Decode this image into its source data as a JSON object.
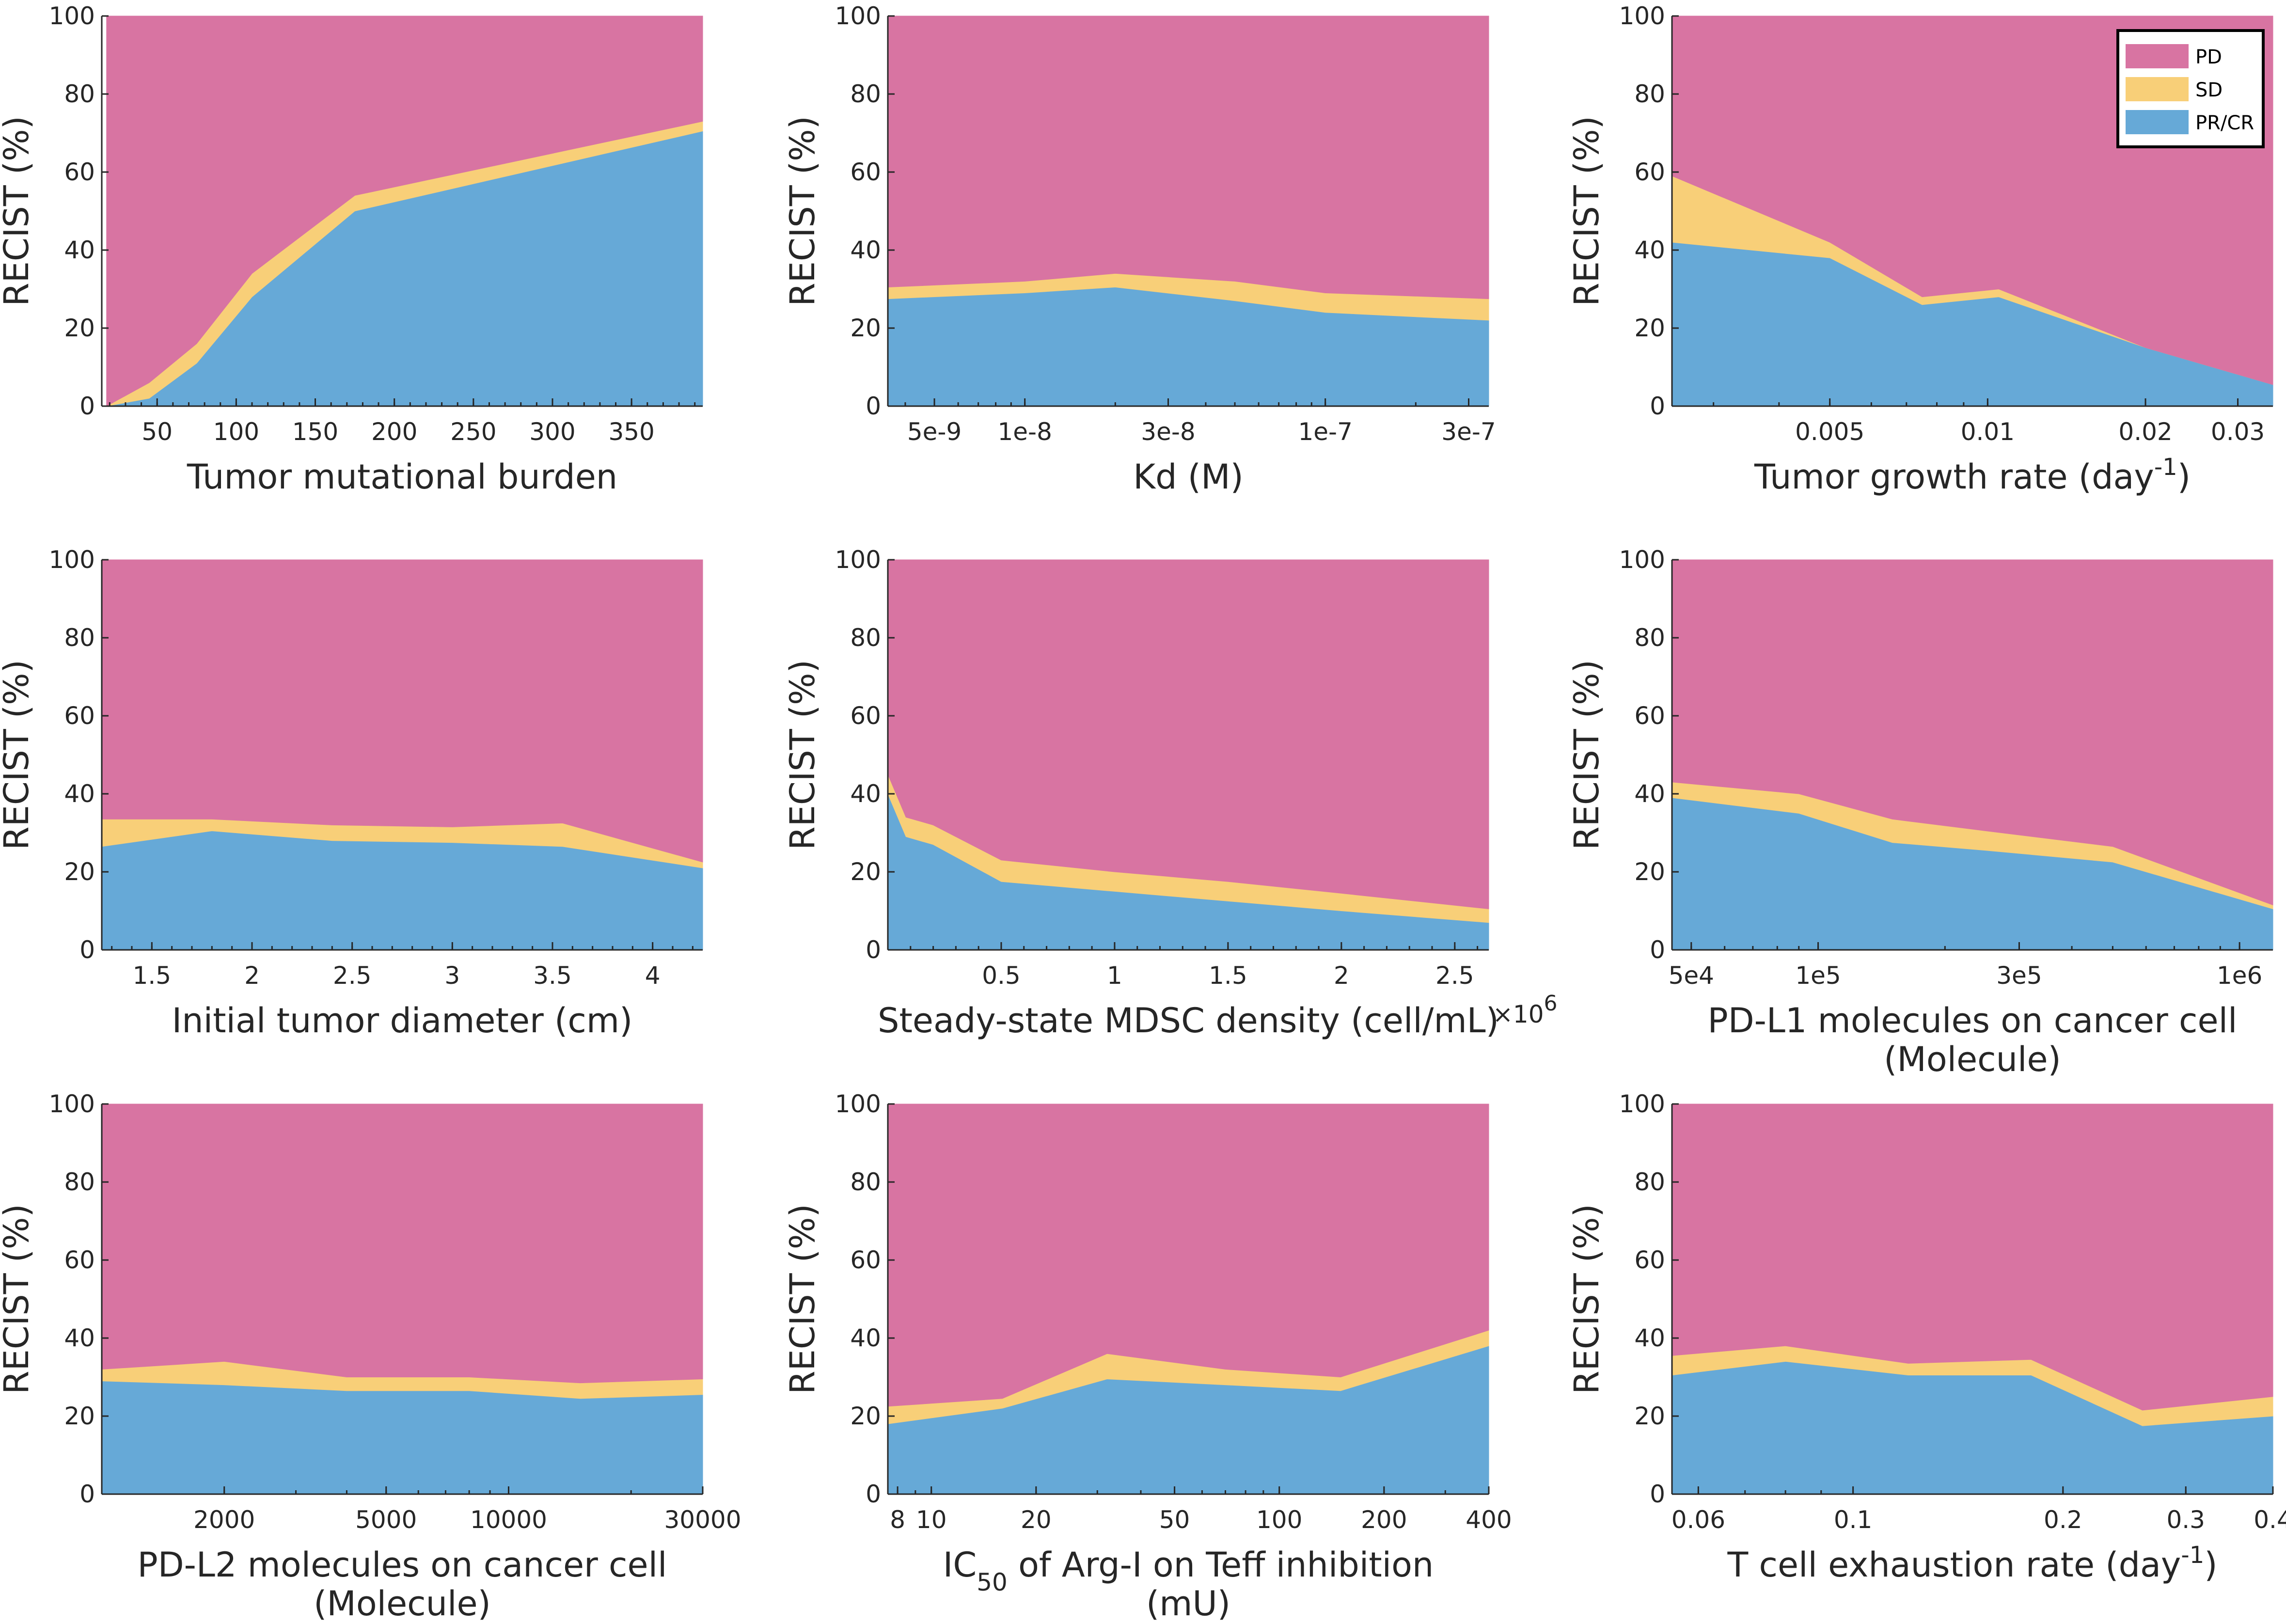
{
  "colors": {
    "PD": "#d874a2",
    "SD": "#f8cf78",
    "PRCR": "#66a9d7",
    "axis": "#262626"
  },
  "legend": {
    "panel": 2,
    "position": "top-right",
    "items": [
      {
        "key": "PD",
        "label": "PD"
      },
      {
        "key": "SD",
        "label": "SD"
      },
      {
        "key": "PRCR",
        "label": "PR/CR"
      }
    ]
  },
  "chart_data": [
    {
      "type": "area",
      "stacked": true,
      "xscale": "linear",
      "xlim": [
        15,
        395
      ],
      "ylim": [
        0,
        100
      ],
      "ylabel": "RECIST (%)",
      "xlabel": "Tumor mutational burden",
      "x": [
        18,
        45,
        75,
        110,
        175,
        395
      ],
      "series": [
        {
          "name": "PR/CR",
          "values": [
            0,
            2,
            11,
            28,
            50,
            70.5
          ]
        },
        {
          "name": "SD",
          "values": [
            0,
            4,
            5,
            6,
            4,
            2.5
          ]
        },
        {
          "name": "PD",
          "values": [
            100,
            94,
            84,
            66,
            46,
            27
          ]
        }
      ],
      "xticks": [
        50,
        100,
        150,
        200,
        250,
        300,
        350
      ],
      "xtick_labels": [
        "50",
        "100",
        "150",
        "200",
        "250",
        "300",
        "350"
      ],
      "yticks": [
        0,
        20,
        40,
        60,
        80,
        100
      ],
      "ytick_labels": [
        "0",
        "20",
        "40",
        "60",
        "80",
        "100"
      ]
    },
    {
      "type": "area",
      "stacked": true,
      "xscale": "log",
      "xlim": [
        3.5e-09,
        3.5e-07
      ],
      "ylim": [
        0,
        100
      ],
      "ylabel": "RECIST (%)",
      "xlabel": "Kd (M)",
      "x": [
        3.5e-09,
        1e-08,
        2e-08,
        5e-08,
        1e-07,
        3.5e-07
      ],
      "series": [
        {
          "name": "PR/CR",
          "values": [
            27.5,
            29,
            30.5,
            27,
            24,
            22
          ]
        },
        {
          "name": "SD",
          "values": [
            3,
            3,
            3.5,
            5,
            5,
            5.5
          ]
        },
        {
          "name": "PD",
          "values": [
            69.5,
            68,
            66,
            68,
            71,
            72.5
          ]
        }
      ],
      "xticks": [
        5e-09,
        1e-08,
        3e-08,
        1e-07,
        3e-07
      ],
      "xtick_labels": [
        "5e-9",
        "1e-8",
        "3e-8",
        "1e-7",
        "3e-7"
      ],
      "yticks": [
        0,
        20,
        40,
        60,
        80,
        100
      ],
      "ytick_labels": [
        "0",
        "20",
        "40",
        "60",
        "80",
        "100"
      ]
    },
    {
      "type": "area",
      "stacked": true,
      "xscale": "log",
      "xlim": [
        0.0025,
        0.035
      ],
      "ylim": [
        0,
        100
      ],
      "ylabel": "RECIST (%)",
      "xlabel": "Tumor growth rate (day",
      "xlabel_sup": "-1",
      "xlabel_suffix": ")",
      "x": [
        0.0025,
        0.005,
        0.0075,
        0.0105,
        0.02,
        0.035
      ],
      "series": [
        {
          "name": "PR/CR",
          "values": [
            42,
            38,
            26,
            28,
            15,
            5.5
          ]
        },
        {
          "name": "SD",
          "values": [
            17,
            4,
            2,
            2,
            0,
            0
          ]
        },
        {
          "name": "PD",
          "values": [
            41,
            58,
            72,
            70,
            85,
            94.5
          ]
        }
      ],
      "xticks": [
        0.005,
        0.01,
        0.02,
        0.03
      ],
      "xtick_labels": [
        "0.005",
        "0.01",
        "0.02",
        "0.03"
      ],
      "yticks": [
        0,
        20,
        40,
        60,
        80,
        100
      ],
      "ytick_labels": [
        "0",
        "20",
        "40",
        "60",
        "80",
        "100"
      ]
    },
    {
      "type": "area",
      "stacked": true,
      "xscale": "linear",
      "xlim": [
        1.25,
        4.25
      ],
      "ylim": [
        0,
        100
      ],
      "ylabel": "RECIST (%)",
      "xlabel": "Initial tumor diameter (cm)",
      "x": [
        1.25,
        1.8,
        2.4,
        3.0,
        3.55,
        4.25
      ],
      "series": [
        {
          "name": "PR/CR",
          "values": [
            26.5,
            30.5,
            28,
            27.5,
            26.5,
            21
          ]
        },
        {
          "name": "SD",
          "values": [
            7,
            3,
            4,
            4,
            6,
            1.5
          ]
        },
        {
          "name": "PD",
          "values": [
            66.5,
            66.5,
            68,
            68.5,
            67.5,
            77.5
          ]
        }
      ],
      "xticks": [
        1.5,
        2,
        2.5,
        3,
        3.5,
        4
      ],
      "xtick_labels": [
        "1.5",
        "2",
        "2.5",
        "3",
        "3.5",
        "4"
      ],
      "yticks": [
        0,
        20,
        40,
        60,
        80,
        100
      ],
      "ytick_labels": [
        "0",
        "20",
        "40",
        "60",
        "80",
        "100"
      ]
    },
    {
      "type": "area",
      "stacked": true,
      "xscale": "linear",
      "xlim": [
        0,
        2.65
      ],
      "ylim": [
        0,
        100
      ],
      "ylabel": "RECIST (%)",
      "xlabel": "Steady-state MDSC density (cell/mL)",
      "x_multiplier": "×10",
      "x_multiplier_exp": "6",
      "x": [
        0,
        0.08,
        0.2,
        0.5,
        1.0,
        1.5,
        2.0,
        2.65
      ],
      "series": [
        {
          "name": "PR/CR",
          "values": [
            40,
            29,
            27,
            17.5,
            15,
            12.5,
            10,
            7
          ]
        },
        {
          "name": "SD",
          "values": [
            5,
            5,
            5,
            5.5,
            5,
            5,
            4.5,
            3.5
          ]
        },
        {
          "name": "PD",
          "values": [
            55,
            66,
            68,
            77,
            80,
            82.5,
            85.5,
            89.5
          ]
        }
      ],
      "xticks": [
        0.5,
        1,
        1.5,
        2,
        2.5
      ],
      "xtick_labels": [
        "0.5",
        "1",
        "1.5",
        "2",
        "2.5"
      ],
      "yticks": [
        0,
        20,
        40,
        60,
        80,
        100
      ],
      "ytick_labels": [
        "0",
        "20",
        "40",
        "60",
        "80",
        "100"
      ]
    },
    {
      "type": "area",
      "stacked": true,
      "xscale": "log",
      "xlim": [
        45000,
        1200000
      ],
      "ylim": [
        0,
        100
      ],
      "ylabel": "RECIST (%)",
      "xlabel": "PD-L1 molecules on cancer cell",
      "xlabel_line2": "(Molecule)",
      "x": [
        45000,
        90000,
        150000,
        250000,
        500000,
        1200000
      ],
      "series": [
        {
          "name": "PR/CR",
          "values": [
            39,
            35,
            27.5,
            25.5,
            22.5,
            10.5
          ]
        },
        {
          "name": "SD",
          "values": [
            4,
            5,
            6,
            5,
            4,
            1
          ]
        },
        {
          "name": "PD",
          "values": [
            57,
            60,
            66.5,
            69.5,
            73.5,
            88.5
          ]
        }
      ],
      "xticks": [
        50000,
        100000,
        300000,
        1000000
      ],
      "xtick_labels": [
        "5e4",
        "1e5",
        "3e5",
        "1e6"
      ],
      "yticks": [
        0,
        20,
        40,
        60,
        80,
        100
      ],
      "ytick_labels": [
        "0",
        "20",
        "40",
        "60",
        "80",
        "100"
      ]
    },
    {
      "type": "area",
      "stacked": true,
      "xscale": "log",
      "xlim": [
        1000,
        30000
      ],
      "ylim": [
        0,
        100
      ],
      "ylabel": "RECIST (%)",
      "xlabel": "PD-L2 molecules on cancer cell",
      "xlabel_line2": "(Molecule)",
      "x": [
        1000,
        2000,
        4000,
        8000,
        15000,
        30000
      ],
      "series": [
        {
          "name": "PR/CR",
          "values": [
            29,
            28,
            26.5,
            26.5,
            24.5,
            25.5
          ]
        },
        {
          "name": "SD",
          "values": [
            3,
            6,
            3.5,
            3.5,
            4,
            4
          ]
        },
        {
          "name": "PD",
          "values": [
            68,
            66,
            70,
            70,
            71.5,
            70.5
          ]
        }
      ],
      "xticks": [
        2000,
        5000,
        10000,
        30000
      ],
      "xtick_labels": [
        "2000",
        "5000",
        "10000",
        "30000"
      ],
      "yticks": [
        0,
        20,
        40,
        60,
        80,
        100
      ],
      "ytick_labels": [
        "0",
        "20",
        "40",
        "60",
        "80",
        "100"
      ]
    },
    {
      "type": "area",
      "stacked": true,
      "xscale": "log",
      "xlim": [
        7.5,
        400
      ],
      "ylim": [
        0,
        100
      ],
      "ylabel": "RECIST (%)",
      "xlabel_pre": "IC",
      "xlabel_sub": "50",
      "xlabel": " of Arg-I on Teff inhibition",
      "xlabel_line2": "(mU)",
      "x": [
        7.5,
        16,
        32,
        70,
        150,
        400
      ],
      "series": [
        {
          "name": "PR/CR",
          "values": [
            18,
            22,
            29.5,
            28,
            26.5,
            38
          ]
        },
        {
          "name": "SD",
          "values": [
            4.5,
            2.5,
            6.5,
            4,
            3.5,
            4
          ]
        },
        {
          "name": "PD",
          "values": [
            77.5,
            75.5,
            64,
            68,
            70,
            58
          ]
        }
      ],
      "xticks": [
        8,
        10,
        20,
        50,
        100,
        200,
        400
      ],
      "xtick_labels": [
        "8",
        "10",
        "20",
        "50",
        "100",
        "200",
        "400"
      ],
      "yticks": [
        0,
        20,
        40,
        60,
        80,
        100
      ],
      "ytick_labels": [
        "0",
        "20",
        "40",
        "60",
        "80",
        "100"
      ]
    },
    {
      "type": "area",
      "stacked": true,
      "xscale": "log",
      "xlim": [
        0.055,
        0.4
      ],
      "ylim": [
        0,
        100
      ],
      "ylabel": "RECIST (%)",
      "xlabel": "T cell exhaustion rate (day",
      "xlabel_sup": "-1",
      "xlabel_suffix": ")",
      "x": [
        0.055,
        0.08,
        0.12,
        0.18,
        0.26,
        0.4
      ],
      "series": [
        {
          "name": "PR/CR",
          "values": [
            30.5,
            34,
            30.5,
            30.5,
            17.5,
            20
          ]
        },
        {
          "name": "SD",
          "values": [
            5,
            4,
            3,
            4,
            4,
            5
          ]
        },
        {
          "name": "PD",
          "values": [
            64.5,
            62,
            66.5,
            65.5,
            78.5,
            75
          ]
        }
      ],
      "xticks": [
        0.06,
        0.1,
        0.2,
        0.3,
        0.4
      ],
      "xtick_labels": [
        "0.06",
        "0.1",
        "0.2",
        "0.3",
        "0.4"
      ],
      "yticks": [
        0,
        20,
        40,
        60,
        80,
        100
      ],
      "ytick_labels": [
        "0",
        "20",
        "40",
        "60",
        "80",
        "100"
      ]
    }
  ]
}
